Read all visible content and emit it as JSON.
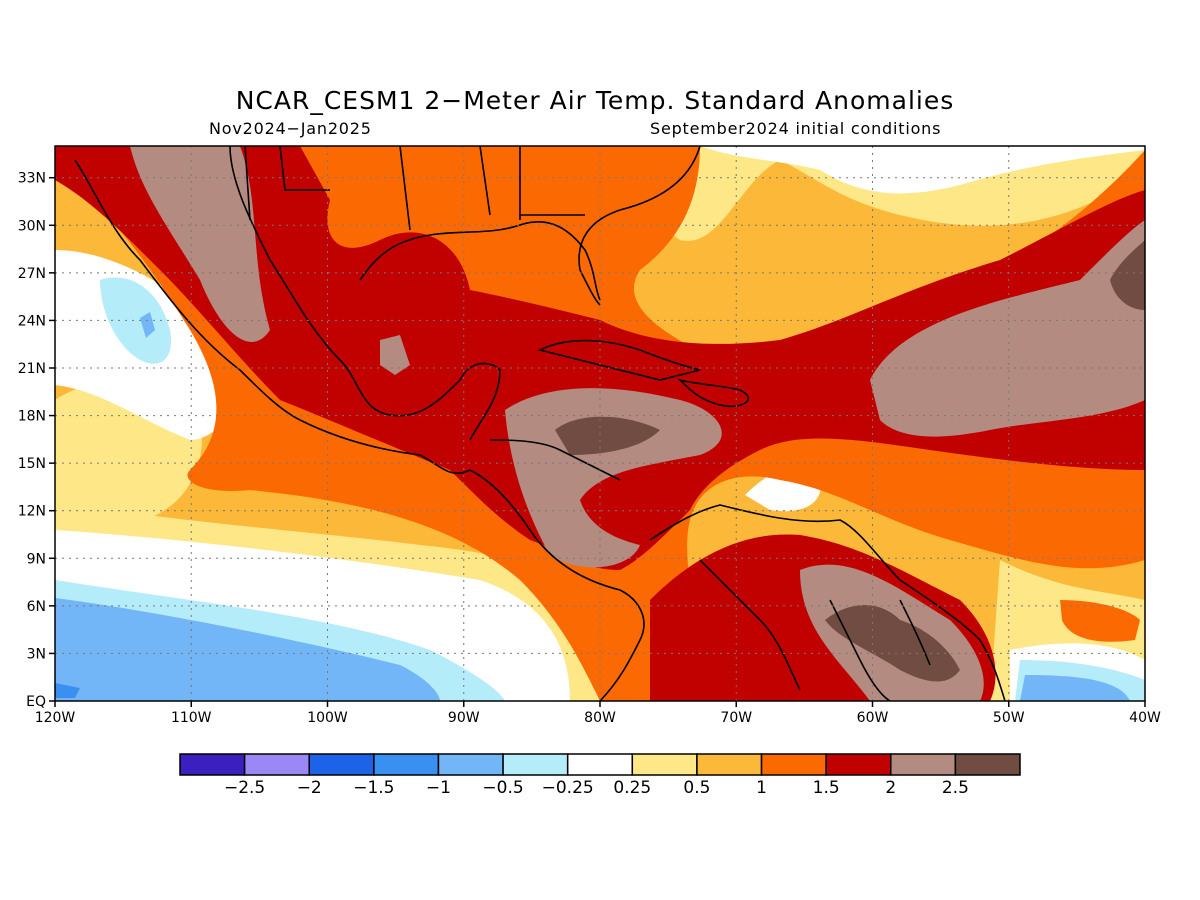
{
  "title": "NCAR_CESM1 2−Meter Air Temp. Standard Anomalies",
  "subtitle_left": "Nov2024−Jan2025",
  "subtitle_right": "September2024 initial conditions",
  "map": {
    "lon_range": [
      -120,
      -40
    ],
    "lat_range": [
      0,
      35
    ],
    "x_ticks": [
      {
        "lon": -120,
        "label": "120W"
      },
      {
        "lon": -110,
        "label": "110W"
      },
      {
        "lon": -100,
        "label": "100W"
      },
      {
        "lon": -90,
        "label": "90W"
      },
      {
        "lon": -80,
        "label": "80W"
      },
      {
        "lon": -70,
        "label": "70W"
      },
      {
        "lon": -60,
        "label": "60W"
      },
      {
        "lon": -50,
        "label": "50W"
      },
      {
        "lon": -40,
        "label": "40W"
      }
    ],
    "y_ticks": [
      {
        "lat": 0,
        "label": "EQ"
      },
      {
        "lat": 3,
        "label": "3N"
      },
      {
        "lat": 6,
        "label": "6N"
      },
      {
        "lat": 9,
        "label": "9N"
      },
      {
        "lat": 12,
        "label": "12N"
      },
      {
        "lat": 15,
        "label": "15N"
      },
      {
        "lat": 18,
        "label": "18N"
      },
      {
        "lat": 21,
        "label": "21N"
      },
      {
        "lat": 24,
        "label": "24N"
      },
      {
        "lat": 27,
        "label": "27N"
      },
      {
        "lat": 30,
        "label": "30N"
      },
      {
        "lat": 33,
        "label": "33N"
      }
    ],
    "grid": "dotted"
  },
  "colorbar": {
    "colors": [
      "#3b1fbf",
      "#9b87f5",
      "#1d63e8",
      "#3a90f0",
      "#72b6f7",
      "#b4ecfa",
      "#ffffff",
      "#fee787",
      "#fcb838",
      "#fb6a02",
      "#c10000",
      "#b38b80",
      "#714c42"
    ],
    "labels": [
      "−2.5",
      "−2",
      "−1.5",
      "−1",
      "−0.5",
      "−0.25",
      "0.25",
      "0.5",
      "1",
      "1.5",
      "2",
      "2.5"
    ]
  }
}
